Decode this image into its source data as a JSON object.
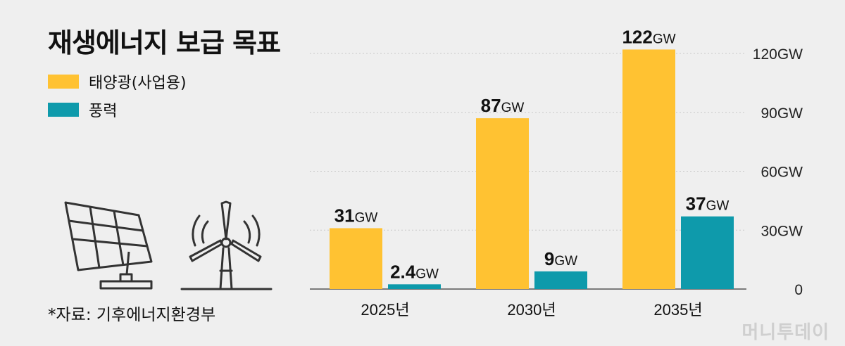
{
  "title": "재생에너지 보급 목표",
  "legend": [
    {
      "label": "태양광(사업용)",
      "color": "#ffc232"
    },
    {
      "label": "풍력",
      "color": "#0e9aab"
    }
  ],
  "source": "*자료: 기후에너지환경부",
  "logo_text": "머니투데이",
  "icons": [
    "solar-panel-icon",
    "wind-turbine-icon"
  ],
  "chart_data": {
    "type": "bar",
    "categories": [
      "2025년",
      "2030년",
      "2035년"
    ],
    "unit": "GW",
    "ylim": [
      0,
      120
    ],
    "yticks": [
      0,
      30,
      60,
      90,
      120
    ],
    "ytick_labels": [
      "0",
      "30GW",
      "60GW",
      "90GW",
      "120GW"
    ],
    "grid": true,
    "y_axis_position": "right",
    "series": [
      {
        "name": "태양광(사업용)",
        "color": "#ffc232",
        "values": [
          31,
          87,
          122
        ],
        "labels": [
          "31",
          "87",
          "122"
        ]
      },
      {
        "name": "풍력",
        "color": "#0e9aab",
        "values": [
          2.4,
          9,
          37
        ],
        "labels": [
          "2.4",
          "9",
          "37"
        ]
      }
    ]
  }
}
